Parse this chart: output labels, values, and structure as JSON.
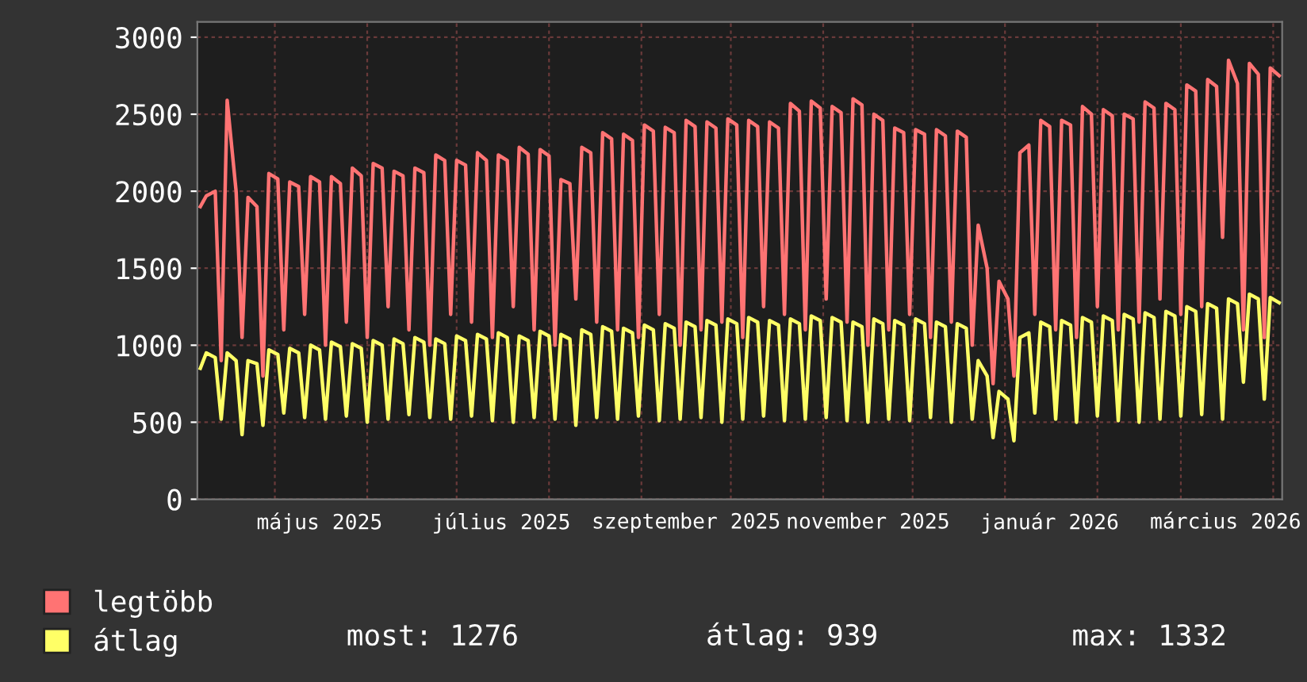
{
  "chart_data": {
    "type": "line",
    "x": [
      "2025-04-06",
      "2025-04-08",
      "2025-04-11",
      "2025-04-13",
      "2025-04-15",
      "2025-04-18",
      "2025-04-20",
      "2025-04-22",
      "2025-04-25",
      "2025-04-27",
      "2025-04-29",
      "2025-05-02",
      "2025-05-04",
      "2025-05-06",
      "2025-05-09",
      "2025-05-11",
      "2025-05-13",
      "2025-05-16",
      "2025-05-18",
      "2025-05-20",
      "2025-05-23",
      "2025-05-25",
      "2025-05-27",
      "2025-05-30",
      "2025-06-01",
      "2025-06-03",
      "2025-06-06",
      "2025-06-08",
      "2025-06-10",
      "2025-06-13",
      "2025-06-15",
      "2025-06-17",
      "2025-06-20",
      "2025-06-22",
      "2025-06-24",
      "2025-06-27",
      "2025-06-29",
      "2025-07-01",
      "2025-07-04",
      "2025-07-06",
      "2025-07-08",
      "2025-07-11",
      "2025-07-13",
      "2025-07-15",
      "2025-07-18",
      "2025-07-20",
      "2025-07-22",
      "2025-07-25",
      "2025-07-27",
      "2025-07-29",
      "2025-08-01",
      "2025-08-03",
      "2025-08-05",
      "2025-08-08",
      "2025-08-10",
      "2025-08-12",
      "2025-08-15",
      "2025-08-17",
      "2025-08-19",
      "2025-08-22",
      "2025-08-24",
      "2025-08-26",
      "2025-08-29",
      "2025-08-31",
      "2025-09-02",
      "2025-09-05",
      "2025-09-07",
      "2025-09-09",
      "2025-09-12",
      "2025-09-14",
      "2025-09-16",
      "2025-09-19",
      "2025-09-21",
      "2025-09-23",
      "2025-09-26",
      "2025-09-28",
      "2025-09-30",
      "2025-10-03",
      "2025-10-05",
      "2025-10-07",
      "2025-10-10",
      "2025-10-12",
      "2025-10-14",
      "2025-10-17",
      "2025-10-19",
      "2025-10-21",
      "2025-10-24",
      "2025-10-26",
      "2025-10-28",
      "2025-10-31",
      "2025-11-02",
      "2025-11-04",
      "2025-11-07",
      "2025-11-09",
      "2025-11-11",
      "2025-11-14",
      "2025-11-16",
      "2025-11-18",
      "2025-11-21",
      "2025-11-23",
      "2025-11-25",
      "2025-11-28",
      "2025-11-30",
      "2025-12-02",
      "2025-12-05",
      "2025-12-07",
      "2025-12-09",
      "2025-12-12",
      "2025-12-14",
      "2025-12-16",
      "2025-12-19",
      "2025-12-21",
      "2025-12-23",
      "2025-12-26",
      "2025-12-28",
      "2025-12-30",
      "2026-01-02",
      "2026-01-04",
      "2026-01-06",
      "2026-01-09",
      "2026-01-11",
      "2026-01-13",
      "2026-01-16",
      "2026-01-18",
      "2026-01-20",
      "2026-01-23",
      "2026-01-25",
      "2026-01-27",
      "2026-01-30",
      "2026-02-01",
      "2026-02-03",
      "2026-02-06",
      "2026-02-08",
      "2026-02-10",
      "2026-02-13",
      "2026-02-15",
      "2026-02-17",
      "2026-02-20",
      "2026-02-22",
      "2026-02-24",
      "2026-02-27",
      "2026-03-01",
      "2026-03-03",
      "2026-03-06",
      "2026-03-08",
      "2026-03-10",
      "2026-03-13",
      "2026-03-15",
      "2026-03-17",
      "2026-03-20",
      "2026-03-22",
      "2026-03-24",
      "2026-03-27",
      "2026-03-29",
      "2026-03-31",
      "2026-04-03"
    ],
    "series": [
      {
        "name": "legtöbb",
        "color": "#ff7373",
        "values": [
          1900,
          1970,
          2000,
          900,
          2590,
          2000,
          1050,
          1960,
          1900,
          800,
          2115,
          2080,
          1100,
          2060,
          2030,
          1200,
          2095,
          2060,
          1000,
          2095,
          2050,
          1150,
          2150,
          2100,
          1050,
          2180,
          2150,
          1250,
          2130,
          2100,
          1100,
          2150,
          2120,
          1000,
          2235,
          2200,
          1200,
          2200,
          2170,
          1150,
          2250,
          2200,
          1050,
          2235,
          2200,
          1250,
          2285,
          2240,
          1100,
          2270,
          2230,
          1000,
          2075,
          2050,
          1300,
          2285,
          2250,
          1150,
          2380,
          2340,
          1100,
          2370,
          2330,
          1050,
          2430,
          2390,
          1200,
          2415,
          2380,
          1000,
          2460,
          2420,
          1100,
          2450,
          2410,
          1150,
          2470,
          2430,
          1050,
          2460,
          2420,
          1250,
          2450,
          2410,
          1200,
          2570,
          2520,
          1100,
          2585,
          2540,
          1300,
          2550,
          2510,
          1150,
          2600,
          2560,
          1000,
          2500,
          2460,
          1100,
          2410,
          2380,
          1200,
          2400,
          2370,
          1050,
          2400,
          2360,
          1150,
          2390,
          2350,
          1000,
          1780,
          1500,
          750,
          1415,
          1300,
          800,
          2250,
          2300,
          1200,
          2460,
          2420,
          1100,
          2460,
          2430,
          1050,
          2550,
          2500,
          1250,
          2530,
          2490,
          1100,
          2500,
          2470,
          1150,
          2580,
          2540,
          1300,
          2570,
          2530,
          1200,
          2690,
          2650,
          1250,
          2725,
          2680,
          1700,
          2850,
          2700,
          1100,
          2830,
          2760,
          1050,
          2800,
          2750
        ]
      },
      {
        "name": "átlag",
        "color": "#ffff66",
        "values": [
          850,
          950,
          920,
          520,
          950,
          900,
          420,
          900,
          880,
          480,
          970,
          940,
          560,
          980,
          950,
          530,
          1000,
          970,
          520,
          1020,
          990,
          540,
          1010,
          980,
          500,
          1030,
          1000,
          520,
          1040,
          1010,
          550,
          1050,
          1020,
          530,
          1040,
          1010,
          520,
          1060,
          1030,
          540,
          1070,
          1040,
          510,
          1080,
          1050,
          500,
          1060,
          1030,
          530,
          1090,
          1060,
          520,
          1070,
          1040,
          480,
          1100,
          1070,
          530,
          1120,
          1090,
          520,
          1110,
          1080,
          540,
          1130,
          1100,
          510,
          1140,
          1110,
          520,
          1150,
          1120,
          530,
          1160,
          1130,
          500,
          1170,
          1140,
          520,
          1180,
          1150,
          540,
          1160,
          1130,
          510,
          1170,
          1140,
          520,
          1190,
          1160,
          530,
          1180,
          1150,
          510,
          1150,
          1120,
          500,
          1170,
          1140,
          520,
          1160,
          1130,
          510,
          1170,
          1140,
          530,
          1150,
          1120,
          500,
          1140,
          1110,
          520,
          900,
          800,
          400,
          700,
          650,
          380,
          1050,
          1080,
          560,
          1150,
          1120,
          520,
          1160,
          1130,
          500,
          1180,
          1150,
          540,
          1190,
          1160,
          510,
          1200,
          1170,
          500,
          1210,
          1180,
          520,
          1220,
          1190,
          540,
          1250,
          1220,
          550,
          1270,
          1240,
          520,
          1300,
          1270,
          760,
          1332,
          1300,
          650,
          1310,
          1276
        ]
      }
    ],
    "xlim": [
      "2025-04-05",
      "2026-04-04"
    ],
    "xticks": [
      {
        "value": "2025-05-01",
        "label": null
      },
      {
        "value": "2025-06-01",
        "label": null
      },
      {
        "value": "2025-07-01",
        "label": null
      },
      {
        "value": "2025-08-01",
        "label": null
      },
      {
        "value": "2025-09-01",
        "label": null
      },
      {
        "value": "2025-10-01",
        "label": null
      },
      {
        "value": "2025-11-01",
        "label": null
      },
      {
        "value": "2025-12-01",
        "label": null
      },
      {
        "value": "2026-01-01",
        "label": null
      },
      {
        "value": "2026-02-01",
        "label": null
      },
      {
        "value": "2026-03-01",
        "label": null
      },
      {
        "value": "2026-04-01",
        "label": null
      },
      {
        "value": "2025-05-16",
        "label": "május 2025"
      },
      {
        "value": "2025-07-16",
        "label": "július 2025"
      },
      {
        "value": "2025-09-16",
        "label": "szeptember 2025"
      },
      {
        "value": "2025-11-16",
        "label": "november 2025"
      },
      {
        "value": "2026-01-16",
        "label": "január 2026"
      },
      {
        "value": "2026-03-16",
        "label": "március 2026"
      }
    ],
    "ylim": [
      0,
      3100
    ],
    "yticks": [
      0,
      500,
      1000,
      1500,
      2000,
      2500,
      3000
    ],
    "grid": true,
    "legend": "bottom left",
    "marker": "none",
    "line_style": "solid",
    "annotations": [
      "most: 1276",
      "átlag: 939",
      "max: 1332"
    ]
  }
}
